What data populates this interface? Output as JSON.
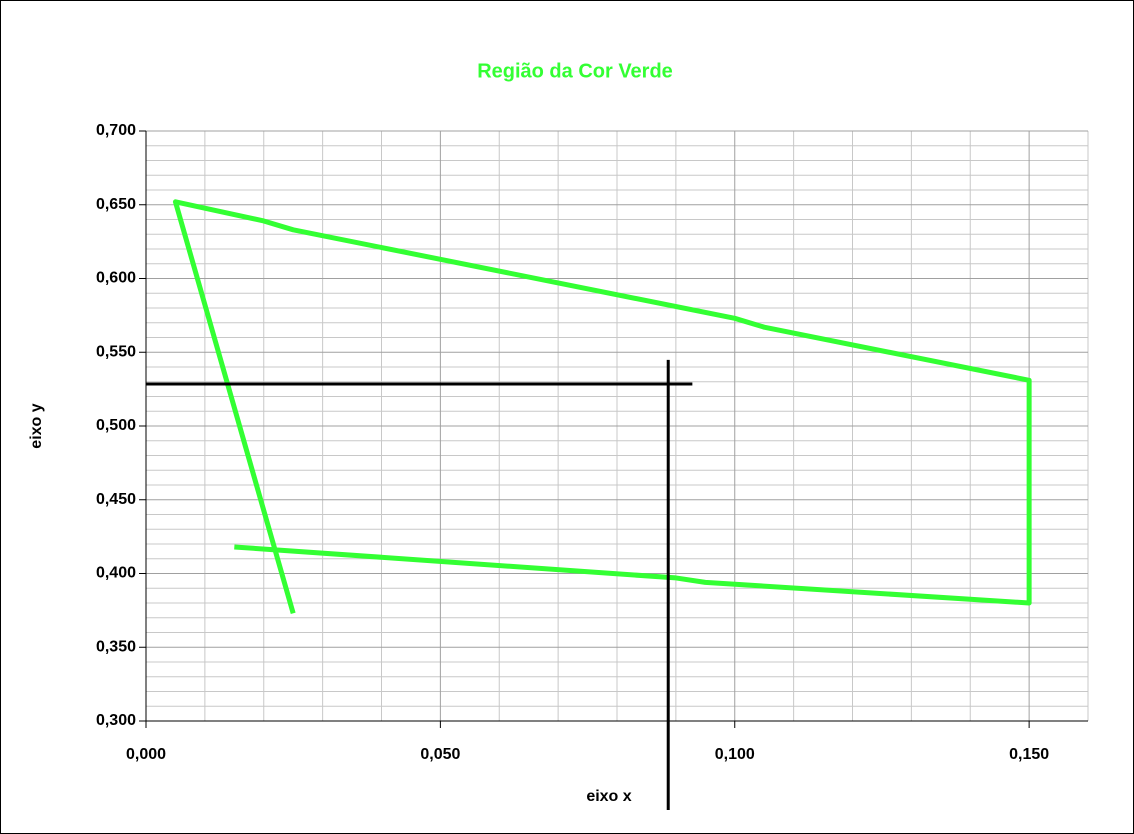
{
  "chart_data": {
    "type": "line",
    "title": "Região da Cor Verde",
    "xlabel": "eixo x",
    "ylabel": "eixo y",
    "xlim": [
      0,
      0.16
    ],
    "ylim": [
      0.3,
      0.7
    ],
    "xticks": [
      {
        "value": 0,
        "label": "0,000"
      },
      {
        "value": 0.05,
        "label": "0,050"
      },
      {
        "value": 0.1,
        "label": "0,100"
      },
      {
        "value": 0.15,
        "label": "0,150"
      }
    ],
    "yticks": [
      {
        "value": 0.3,
        "label": "0,300"
      },
      {
        "value": 0.35,
        "label": "0,350"
      },
      {
        "value": 0.4,
        "label": "0,400"
      },
      {
        "value": 0.45,
        "label": "0,450"
      },
      {
        "value": 0.5,
        "label": "0,500"
      },
      {
        "value": 0.55,
        "label": "0,550"
      },
      {
        "value": 0.6,
        "label": "0,600"
      },
      {
        "value": 0.65,
        "label": "0,650"
      },
      {
        "value": 0.7,
        "label": "0,700"
      }
    ],
    "x_minor_ticks": [
      0.01,
      0.02,
      0.03,
      0.04,
      0.06,
      0.07,
      0.08,
      0.09,
      0.11,
      0.12,
      0.13,
      0.14,
      0.16
    ],
    "y_minor_ticks": [
      0.31,
      0.32,
      0.33,
      0.34,
      0.36,
      0.37,
      0.38,
      0.39,
      0.41,
      0.42,
      0.43,
      0.44,
      0.46,
      0.47,
      0.48,
      0.49,
      0.51,
      0.52,
      0.53,
      0.54,
      0.56,
      0.57,
      0.58,
      0.59,
      0.61,
      0.62,
      0.63,
      0.64,
      0.66,
      0.67,
      0.68,
      0.69
    ],
    "grid": true,
    "series": [
      {
        "color": "#33ff33",
        "x": [
          0.025,
          0.005,
          0.02,
          0.025,
          0.1,
          0.105,
          0.15,
          0.15,
          0.095,
          0.09,
          0.015
        ],
        "values": [
          0.373,
          0.652,
          0.639,
          0.633,
          0.573,
          0.567,
          0.531,
          0.38,
          0.394,
          0.397,
          0.418
        ]
      },
      {
        "color": "#000000",
        "x": [
          0,
          0.0928
        ],
        "values": [
          0.5285,
          0.5285
        ]
      },
      {
        "color": "#000000",
        "x": [
          0.0887,
          0.0887
        ],
        "values": [
          0.5448,
          0.2397
        ]
      }
    ]
  }
}
